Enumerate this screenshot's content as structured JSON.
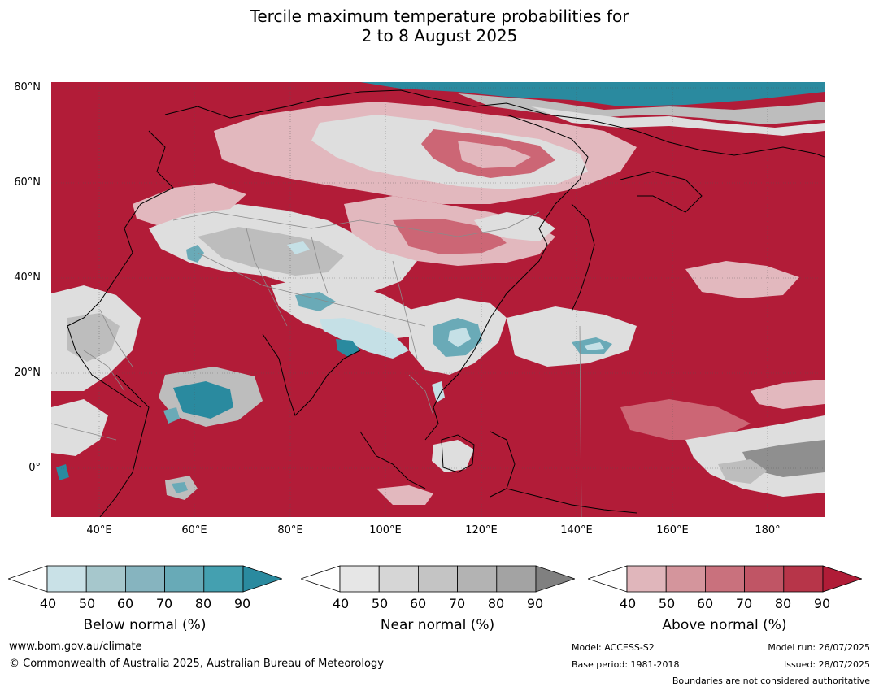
{
  "title": {
    "line1": "Tercile maximum temperature probabilities for",
    "line2": "2 to 8 August 2025"
  },
  "map": {
    "lat_labels": [
      "80°N",
      "60°N",
      "40°N",
      "20°N",
      "0°"
    ],
    "lon_labels": [
      "40°E",
      "60°E",
      "80°E",
      "100°E",
      "120°E",
      "140°E",
      "160°E",
      "180°"
    ],
    "colors": {
      "above_strong": "#b21c38",
      "above_mid": "#cc6675",
      "above_weak": "#e2b8be",
      "near_light": "#dedede",
      "near_mid": "#bdbdbd",
      "near_dark": "#8f8f8f",
      "below_weak": "#c5e0e6",
      "below_mid": "#6aaab7",
      "below_strong": "#2a8a9f",
      "coastline": "#000000",
      "border": "#8a8a8a"
    }
  },
  "legends": [
    {
      "id": "below",
      "label": "Below normal (%)",
      "ticks": [
        "40",
        "50",
        "60",
        "70",
        "80",
        "90"
      ],
      "colors": [
        "#ffffff",
        "#c9e1e7",
        "#a6c7cc",
        "#86b4bf",
        "#68aab7",
        "#44a0b0",
        "#2a8a9f"
      ]
    },
    {
      "id": "near",
      "label": "Near normal (%)",
      "ticks": [
        "40",
        "50",
        "60",
        "70",
        "80",
        "90"
      ],
      "colors": [
        "#ffffff",
        "#e6e6e6",
        "#d6d6d6",
        "#c4c4c4",
        "#b3b3b3",
        "#a3a3a3",
        "#808080"
      ]
    },
    {
      "id": "above",
      "label": "Above normal (%)",
      "ticks": [
        "40",
        "50",
        "60",
        "70",
        "80",
        "90"
      ],
      "colors": [
        "#ffffff",
        "#e0b6bb",
        "#d4959c",
        "#c9717d",
        "#c05565",
        "#b73549",
        "#b01c37"
      ]
    }
  ],
  "footer": {
    "website": "www.bom.gov.au/climate",
    "copyright": "© Commonwealth of Australia 2025, Australian Bureau of Meteorology",
    "model": "Model: ACCESS-S2",
    "base_period": "Base period: 1981-2018",
    "model_run": "Model run: 26/07/2025",
    "issued": "Issued: 28/07/2025",
    "disclaimer": "Boundaries are not considered authoritative"
  }
}
